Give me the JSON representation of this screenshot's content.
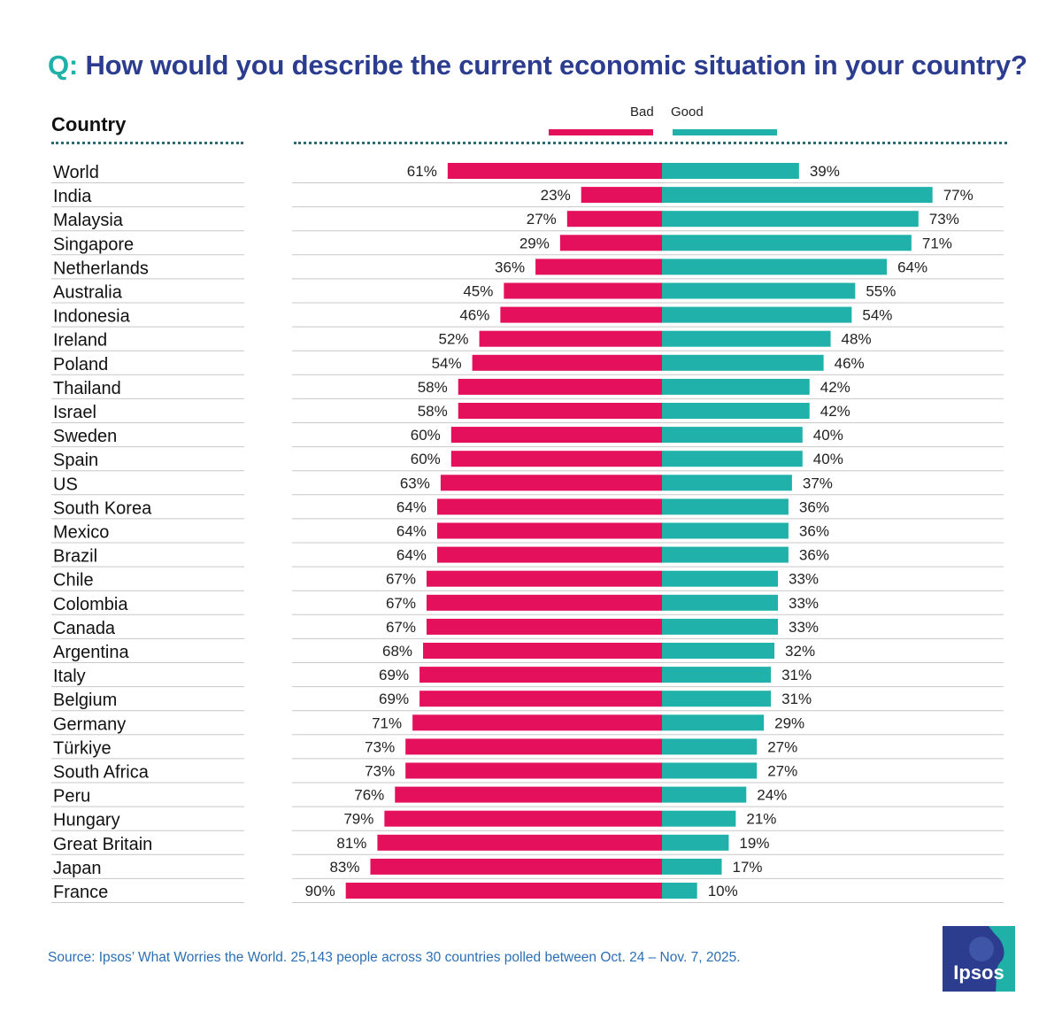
{
  "title": {
    "prefix": "Q:",
    "text": "How would you describe the current economic situation in your country?"
  },
  "column_header": "Country",
  "legend": {
    "bad": "Bad",
    "good": "Good"
  },
  "colors": {
    "bad": "#e5105b",
    "good": "#20b2aa",
    "title": "#2c3d8f",
    "accent": "#1fb0a8"
  },
  "source": "Source: Ipsos’ What Worries the World. 25,143 people across 30 countries polled between Oct. 24 – Nov. 7, 2025.",
  "logo": {
    "text": "Ipsos"
  },
  "chart_data": {
    "type": "bar",
    "categories": [
      "World",
      "India",
      "Malaysia",
      "Singapore",
      "Netherlands",
      "Australia",
      "Indonesia",
      "Ireland",
      "Poland",
      "Thailand",
      "Israel",
      "Sweden",
      "Spain",
      "US",
      "South Korea",
      "Mexico",
      "Brazil",
      "Chile",
      "Colombia",
      "Canada",
      "Argentina",
      "Italy",
      "Belgium",
      "Germany",
      "Türkiye",
      "South Africa",
      "Peru",
      "Hungary",
      "Great Britain",
      "Japan",
      "France"
    ],
    "series": [
      {
        "name": "Bad",
        "values": [
          61,
          23,
          27,
          29,
          36,
          45,
          46,
          52,
          54,
          58,
          58,
          60,
          60,
          63,
          64,
          64,
          64,
          67,
          67,
          67,
          68,
          69,
          69,
          71,
          73,
          73,
          76,
          79,
          81,
          83,
          90
        ]
      },
      {
        "name": "Good",
        "values": [
          39,
          77,
          73,
          71,
          64,
          55,
          54,
          48,
          46,
          42,
          42,
          40,
          40,
          37,
          36,
          36,
          36,
          33,
          33,
          33,
          32,
          31,
          31,
          29,
          27,
          27,
          24,
          21,
          19,
          17,
          10
        ]
      }
    ],
    "value_suffix": "%",
    "orientation": "horizontal-diverging",
    "legend_position": "top-center",
    "grid": false
  }
}
